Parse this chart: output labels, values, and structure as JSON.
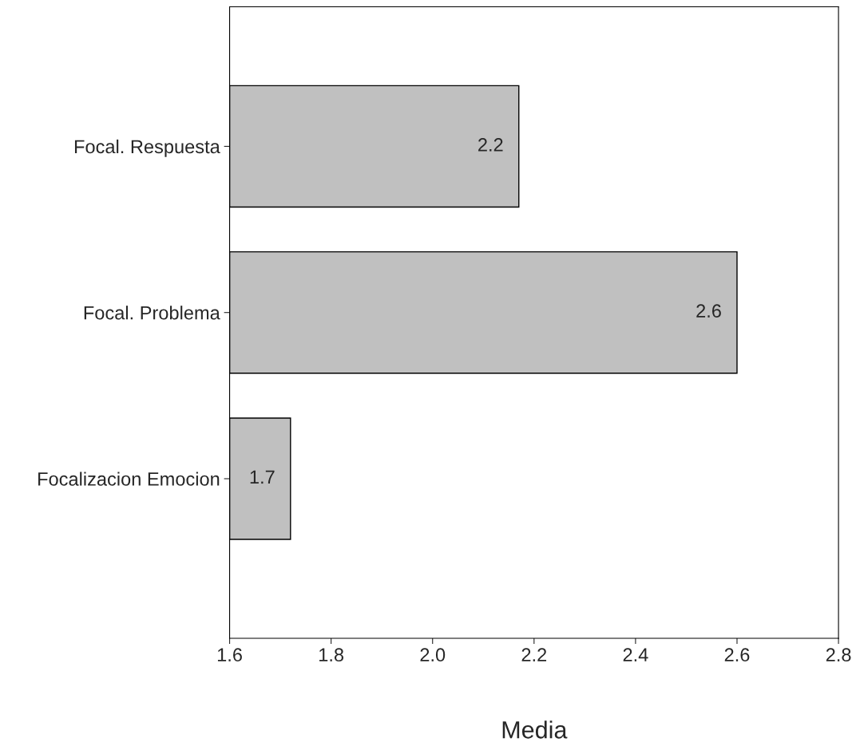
{
  "chart_data": {
    "type": "bar",
    "orientation": "horizontal",
    "xlabel": "Media",
    "categories": [
      "Focal. Respuesta",
      "Focal. Problema",
      "Focalizacion Emocion"
    ],
    "values": [
      2.17,
      2.6,
      1.72
    ],
    "value_labels": [
      "2.2",
      "2.6",
      "1.7"
    ],
    "color": "#c0c0c0",
    "xlim": [
      1.6,
      2.8
    ],
    "xticks": [
      {
        "value": 1.6,
        "label": "1.6"
      },
      {
        "value": 1.8,
        "label": "1.8"
      },
      {
        "value": 2.0,
        "label": "2.0"
      },
      {
        "value": 2.2,
        "label": "2.2"
      },
      {
        "value": 2.4,
        "label": "2.4"
      },
      {
        "value": 2.6,
        "label": "2.6"
      },
      {
        "value": 2.8,
        "label": "2.8"
      }
    ],
    "grid": false,
    "legend": false
  }
}
